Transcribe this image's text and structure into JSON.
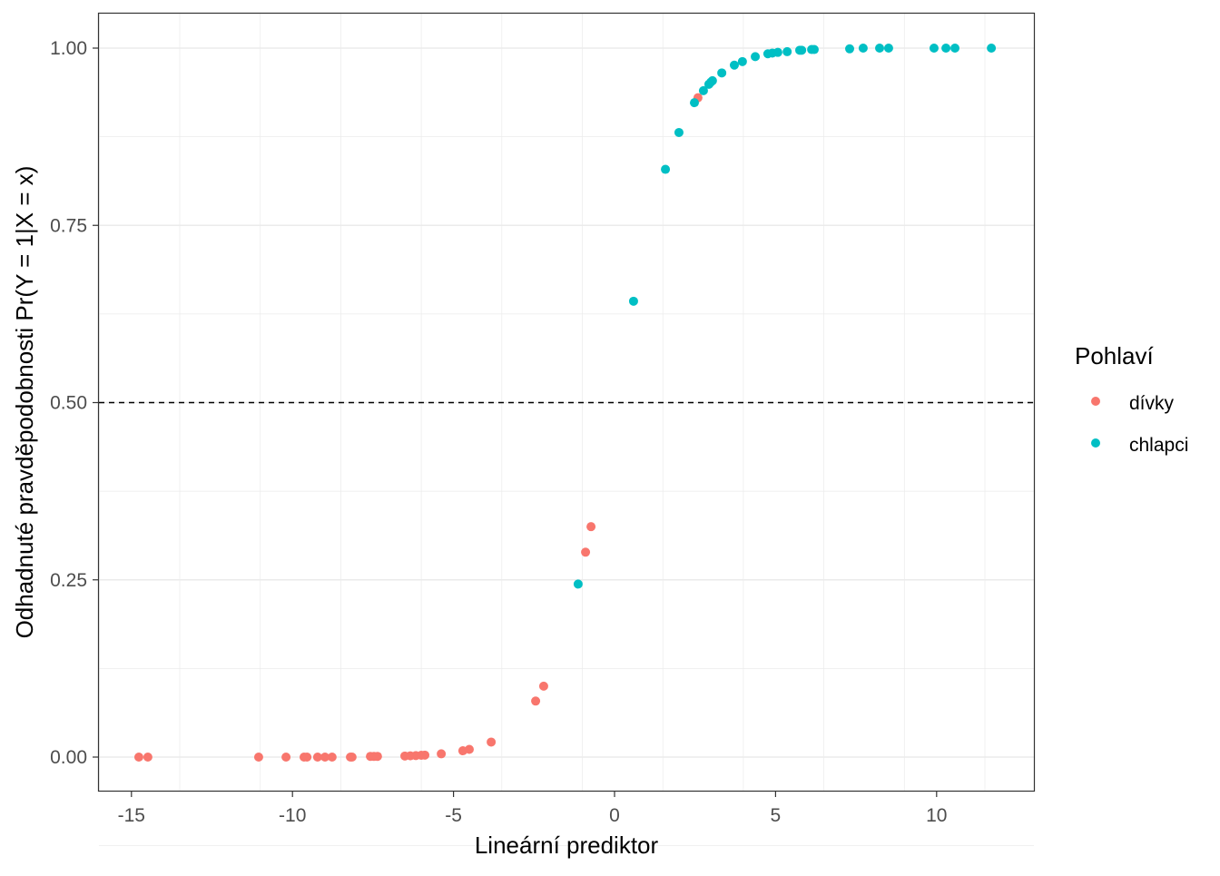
{
  "chart_data": {
    "type": "scatter",
    "title": "",
    "xlabel": "Lineární prediktor",
    "ylabel": "Odhadnuté pravděpodobnosti Pr(Y = 1|X = x)",
    "xlim": [
      -16,
      13
    ],
    "ylim": [
      -0.05,
      1.05
    ],
    "xticks": [
      -15,
      -10,
      -5,
      0,
      5,
      10
    ],
    "xtick_labels": [
      "-15",
      "-10",
      "-5",
      "0",
      "5",
      "10"
    ],
    "yticks": [
      0,
      0.25,
      0.5,
      0.75,
      1
    ],
    "ytick_labels": [
      "0.00",
      "0.25",
      "0.50",
      "0.75",
      "1.00"
    ],
    "grid": true,
    "hline": {
      "y": 0.5,
      "style": "dashed"
    },
    "legend": {
      "title": "Pohlaví",
      "placement": "right"
    },
    "series": [
      {
        "name": "dívky",
        "color": "#F8766D",
        "x": [
          -14.77,
          -14.49,
          -11.05,
          -10.2,
          -9.64,
          -9.55,
          -9.22,
          -8.99,
          -8.77,
          -8.2,
          -8.15,
          -7.58,
          -7.47,
          -7.36,
          -6.51,
          -6.34,
          -6.17,
          -6.0,
          -5.89,
          -5.38,
          -4.71,
          -4.51,
          -3.83,
          -2.45,
          -2.2,
          -0.9,
          -0.73,
          2.59
        ],
        "y": [
          0.0,
          0.0,
          0.0,
          0.0,
          0.0,
          0.0,
          0.0,
          0.0,
          0.0,
          0.0,
          0.0,
          0.001,
          0.001,
          0.001,
          0.0015,
          0.0018,
          0.0021,
          0.0025,
          0.0028,
          0.0046,
          0.0089,
          0.0109,
          0.0212,
          0.079,
          0.1,
          0.289,
          0.325,
          0.93
        ]
      },
      {
        "name": "chlapci",
        "color": "#00BFC4",
        "x": [
          -1.13,
          0.59,
          1.58,
          2.0,
          2.48,
          2.76,
          2.93,
          2.99,
          3.04,
          3.33,
          3.72,
          3.97,
          4.37,
          4.76,
          4.9,
          5.07,
          5.36,
          5.75,
          5.81,
          6.12,
          6.2,
          7.3,
          7.72,
          8.23,
          8.51,
          9.92,
          10.29,
          10.57,
          11.7
        ],
        "y": [
          0.244,
          0.643,
          0.829,
          0.881,
          0.923,
          0.94,
          0.949,
          0.952,
          0.954,
          0.965,
          0.976,
          0.981,
          0.988,
          0.992,
          0.993,
          0.994,
          0.995,
          0.997,
          0.997,
          0.998,
          0.998,
          0.999,
          1.0,
          1.0,
          1.0,
          1.0,
          1.0,
          1.0,
          1.0
        ]
      }
    ]
  }
}
